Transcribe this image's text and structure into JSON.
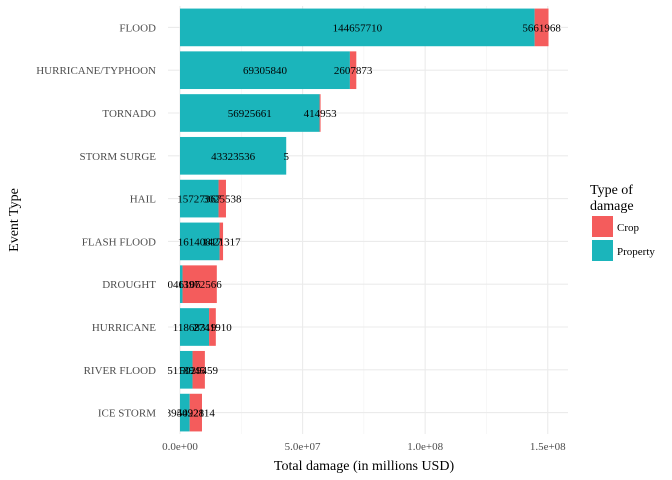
{
  "chart_data": {
    "type": "bar",
    "orientation": "horizontal",
    "stacked": true,
    "xlabel": "Total damage (in millions USD)",
    "ylabel": "Event Type",
    "xlim": [
      0,
      155000000
    ],
    "x_ticks": [
      0,
      50000000,
      100000000,
      150000000
    ],
    "x_tick_labels": [
      "0.0e+00",
      "5.0e+07",
      "1.0e+08",
      "1.5e+08"
    ],
    "grid": true,
    "legend_position": "right",
    "legend_title": "Type of\ndamage",
    "categories": [
      "FLOOD",
      "HURRICANE/TYPHOON",
      "TORNADO",
      "STORM SURGE",
      "HAIL",
      "FLASH FLOOD",
      "DROUGHT",
      "HURRICANE",
      "RIVER FLOOD",
      "ICE STORM"
    ],
    "series": [
      {
        "name": "Property",
        "color": "#1bb5bb",
        "values": [
          144657710,
          69305840,
          56925661,
          43323536,
          15727367,
          16140817,
          1046106,
          11868319,
          5118945,
          3944928
        ]
      },
      {
        "name": "Crop",
        "color": "#f45c5c",
        "values": [
          5661968,
          2607873,
          414953,
          5,
          3025538,
          1421317,
          13972566,
          2741910,
          5029459,
          5022114
        ]
      }
    ],
    "bar_labels": {
      "Property": [
        "144657710",
        "69305840",
        "56925661",
        "43323536",
        "15727367",
        "16140817",
        "1046106",
        "11868319",
        "5118945",
        "3944928"
      ],
      "Crop": [
        "5661968",
        "2607873",
        "414953",
        "5",
        "3025538",
        "1421317",
        "13972566",
        "2741910",
        "5029459",
        "5022114"
      ]
    },
    "legend_order": [
      "Crop",
      "Property"
    ]
  }
}
